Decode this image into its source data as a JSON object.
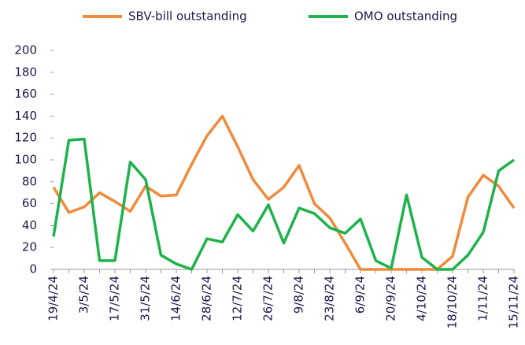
{
  "chart_data": {
    "type": "line",
    "categories": [
      "19/4/24",
      null,
      "3/5/24",
      null,
      "17/5/24",
      null,
      "31/5/24",
      null,
      "14/6/24",
      null,
      "28/6/24",
      null,
      "12/7/24",
      null,
      "26/7/24",
      null,
      "9/8/24",
      null,
      "23/8/24",
      null,
      "6/9/24",
      null,
      "20/9/24",
      null,
      "4/10/24",
      null,
      "18/10/24",
      null,
      "1/11/24",
      null,
      "15/11/24"
    ],
    "series": [
      {
        "name": "SBV-bill outstanding",
        "color": "#f08a3c",
        "values": [
          75,
          52,
          57,
          70,
          62,
          53,
          76,
          67,
          68,
          96,
          122,
          140,
          112,
          82,
          64,
          75,
          95,
          60,
          47,
          24,
          0,
          0,
          0,
          0,
          0,
          0,
          12,
          66,
          86,
          76,
          56
        ]
      },
      {
        "name": "OMO outstanding",
        "color": "#1db34a",
        "values": [
          30,
          118,
          119,
          8,
          8,
          98,
          82,
          13,
          5,
          0,
          28,
          25,
          50,
          35,
          59,
          24,
          56,
          51,
          38,
          33,
          46,
          8,
          1,
          68,
          11,
          0,
          0,
          13,
          34,
          90,
          100
        ]
      }
    ],
    "ylim": [
      0,
      200
    ],
    "yticks": [
      0,
      20,
      40,
      60,
      80,
      100,
      120,
      140,
      160,
      180,
      200
    ],
    "legend": "top"
  }
}
